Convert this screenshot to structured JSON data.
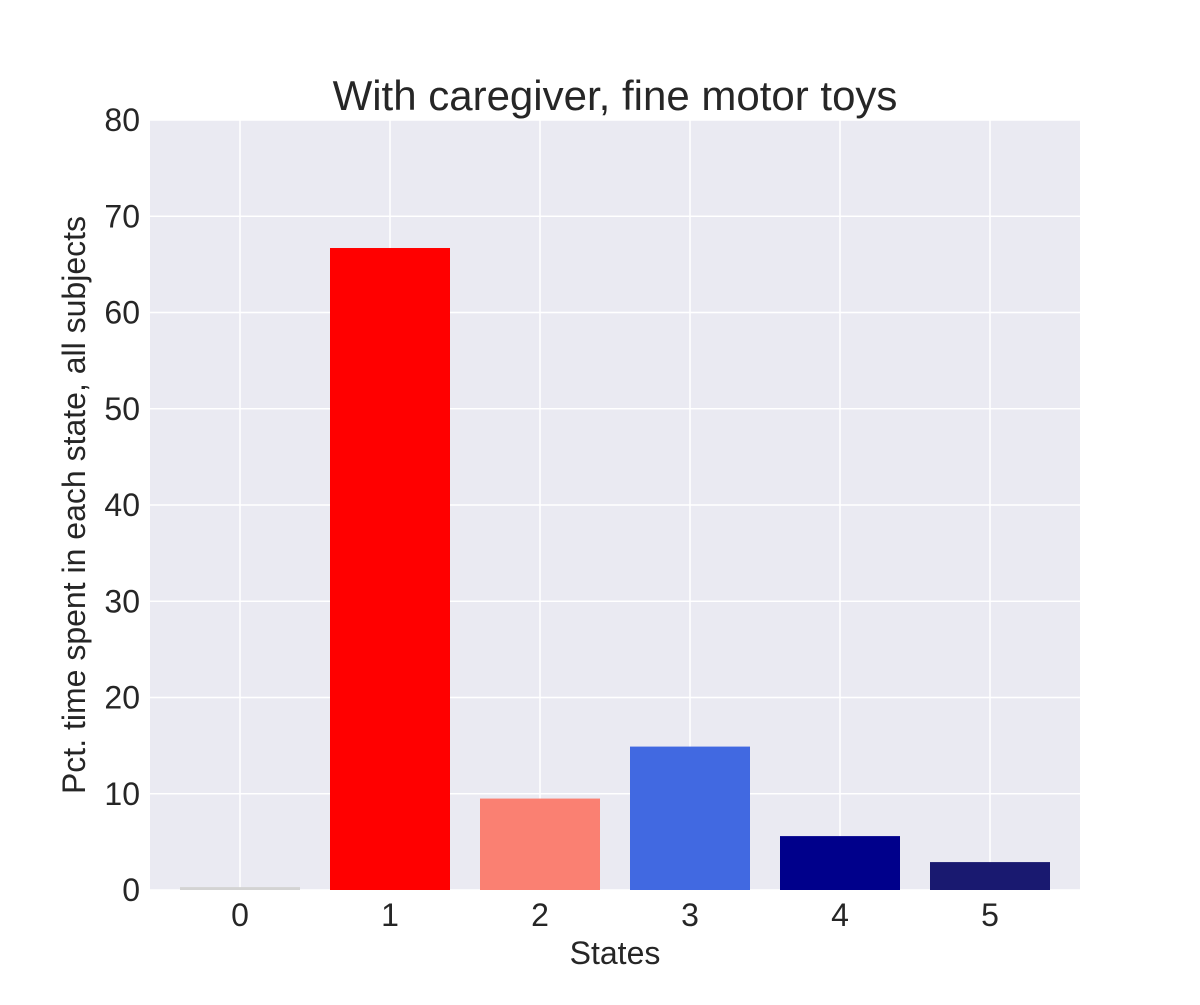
{
  "chart_data": {
    "type": "bar",
    "title": "With caregiver, fine motor toys",
    "xlabel": "States",
    "ylabel": "Pct. time spent in each state, all subjects",
    "categories": [
      "0",
      "1",
      "2",
      "3",
      "4",
      "5"
    ],
    "values": [
      0.3,
      66.7,
      9.5,
      14.9,
      5.6,
      2.9
    ],
    "bar_colors": [
      "#d3d3d3",
      "#ff0000",
      "#fa8072",
      "#4169e1",
      "#00008b",
      "#191970"
    ],
    "ylim": [
      0,
      80
    ],
    "yticks": [
      "0",
      "10",
      "20",
      "30",
      "40",
      "50",
      "60",
      "70",
      "80"
    ],
    "grid": true,
    "background_color": "#eaeaf2",
    "grid_color": "#ffffff"
  }
}
